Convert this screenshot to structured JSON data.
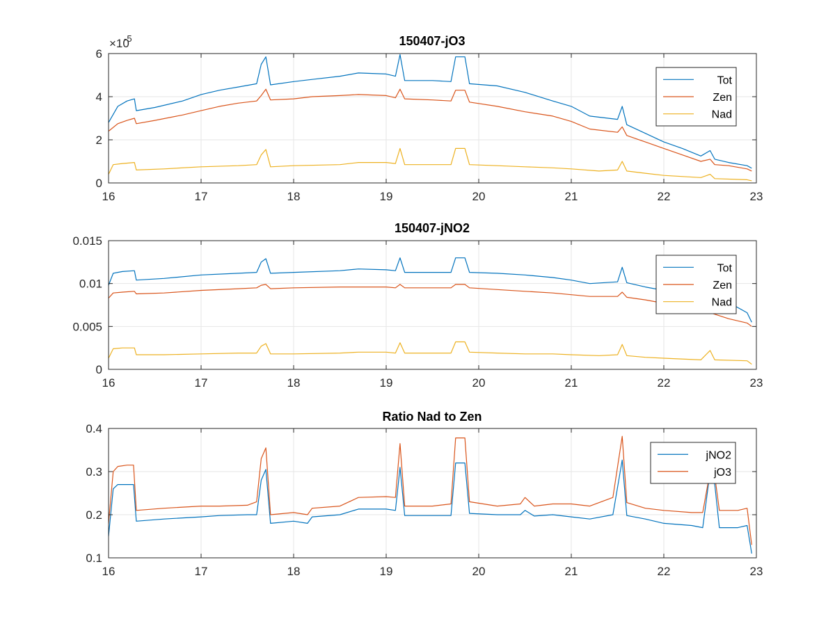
{
  "figure": {
    "background": "#ffffff"
  },
  "colors": {
    "blue": "#0072BD",
    "orange": "#D95319",
    "yellow": "#EDB120",
    "grid": "#e6e6e6",
    "axis": "#262626"
  },
  "chart_data": [
    {
      "type": "line",
      "title": "150407-jO3",
      "xlim": [
        16,
        23
      ],
      "ylim": [
        0,
        6e-05
      ],
      "xticks": [
        16,
        17,
        18,
        19,
        20,
        21,
        22,
        23
      ],
      "xtick_labels": [
        "16",
        "17",
        "18",
        "19",
        "20",
        "21",
        "22",
        "23"
      ],
      "yticks": [
        0,
        2e-05,
        4e-05,
        6e-05
      ],
      "ytick_labels": [
        "0",
        "2",
        "4",
        "6"
      ],
      "y_exponent_label": "×10",
      "y_exponent_power": "-5",
      "grid": true,
      "legend_position": "top-right",
      "series": [
        {
          "name": "Tot",
          "color": "#0072BD",
          "x": [
            16.0,
            16.1,
            16.2,
            16.28,
            16.3,
            16.5,
            16.8,
            17.0,
            17.2,
            17.4,
            17.6,
            17.65,
            17.7,
            17.75,
            18.0,
            18.2,
            18.5,
            18.7,
            19.0,
            19.1,
            19.15,
            19.2,
            19.5,
            19.7,
            19.75,
            19.85,
            19.9,
            20.2,
            20.5,
            20.8,
            21.0,
            21.2,
            21.5,
            21.55,
            21.6,
            21.8,
            22.0,
            22.2,
            22.4,
            22.5,
            22.55,
            22.7,
            22.9,
            22.95
          ],
          "y": [
            2.8e-05,
            3.55e-05,
            3.8e-05,
            3.9e-05,
            3.35e-05,
            3.5e-05,
            3.8e-05,
            4.1e-05,
            4.3e-05,
            4.45e-05,
            4.6e-05,
            5.5e-05,
            5.85e-05,
            4.55e-05,
            4.7e-05,
            4.8e-05,
            4.95e-05,
            5.1e-05,
            5.05e-05,
            4.95e-05,
            5.95e-05,
            4.75e-05,
            4.75e-05,
            4.7e-05,
            5.85e-05,
            5.85e-05,
            4.6e-05,
            4.5e-05,
            4.2e-05,
            3.8e-05,
            3.55e-05,
            3.1e-05,
            2.95e-05,
            3.55e-05,
            2.7e-05,
            2.3e-05,
            1.9e-05,
            1.6e-05,
            1.25e-05,
            1.5e-05,
            1.1e-05,
            9.5e-06,
            8e-06,
            6.8e-06
          ]
        },
        {
          "name": "Zen",
          "color": "#D95319",
          "x": [
            16.0,
            16.1,
            16.2,
            16.28,
            16.3,
            16.5,
            16.8,
            17.0,
            17.2,
            17.4,
            17.6,
            17.65,
            17.7,
            17.75,
            18.0,
            18.2,
            18.5,
            18.7,
            19.0,
            19.1,
            19.15,
            19.2,
            19.5,
            19.7,
            19.75,
            19.85,
            19.9,
            20.2,
            20.5,
            20.8,
            21.0,
            21.2,
            21.5,
            21.55,
            21.6,
            21.8,
            22.0,
            22.2,
            22.4,
            22.5,
            22.55,
            22.7,
            22.9,
            22.95
          ],
          "y": [
            2.4e-05,
            2.75e-05,
            2.9e-05,
            3e-05,
            2.75e-05,
            2.9e-05,
            3.15e-05,
            3.35e-05,
            3.55e-05,
            3.7e-05,
            3.8e-05,
            4.05e-05,
            4.35e-05,
            3.85e-05,
            3.9e-05,
            4e-05,
            4.05e-05,
            4.1e-05,
            4.05e-05,
            3.95e-05,
            4.35e-05,
            3.9e-05,
            3.85e-05,
            3.8e-05,
            4.3e-05,
            4.3e-05,
            3.75e-05,
            3.55e-05,
            3.3e-05,
            3.1e-05,
            2.85e-05,
            2.5e-05,
            2.35e-05,
            2.6e-05,
            2.2e-05,
            1.9e-05,
            1.6e-05,
            1.3e-05,
            1e-05,
            1.1e-05,
            8.5e-06,
            8e-06,
            6.5e-06,
            5.5e-06
          ]
        },
        {
          "name": "Nad",
          "color": "#EDB120",
          "x": [
            16.0,
            16.05,
            16.15,
            16.28,
            16.3,
            16.6,
            17.0,
            17.4,
            17.6,
            17.65,
            17.7,
            17.75,
            18.0,
            18.5,
            18.7,
            19.0,
            19.1,
            19.15,
            19.2,
            19.5,
            19.7,
            19.75,
            19.85,
            19.9,
            20.2,
            20.5,
            20.8,
            21.0,
            21.3,
            21.5,
            21.55,
            21.6,
            21.8,
            22.0,
            22.4,
            22.5,
            22.55,
            22.9,
            22.95
          ],
          "y": [
            4e-06,
            8.5e-06,
            9e-06,
            9.5e-06,
            6e-06,
            6.5e-06,
            7.5e-06,
            8e-06,
            8.5e-06,
            1.3e-05,
            1.55e-05,
            7.5e-06,
            8e-06,
            8.5e-06,
            9.5e-06,
            9.5e-06,
            9e-06,
            1.6e-05,
            8.5e-06,
            8.5e-06,
            8.5e-06,
            1.6e-05,
            1.6e-05,
            8.5e-06,
            8e-06,
            7.5e-06,
            7e-06,
            6.5e-06,
            5.5e-06,
            6e-06,
            1e-05,
            5.5e-06,
            4.5e-06,
            3.5e-06,
            2.5e-06,
            4e-06,
            2e-06,
            1.5e-06,
            1e-06
          ]
        }
      ]
    },
    {
      "type": "line",
      "title": "150407-jNO2",
      "xlim": [
        16,
        23
      ],
      "ylim": [
        0,
        0.015
      ],
      "xticks": [
        16,
        17,
        18,
        19,
        20,
        21,
        22,
        23
      ],
      "xtick_labels": [
        "16",
        "17",
        "18",
        "19",
        "20",
        "21",
        "22",
        "23"
      ],
      "yticks": [
        0,
        0.005,
        0.01,
        0.015
      ],
      "ytick_labels": [
        "0",
        "0.005",
        "0.01",
        "0.015"
      ],
      "grid": true,
      "legend_position": "top-right",
      "series": [
        {
          "name": "Tot",
          "color": "#0072BD",
          "x": [
            16.0,
            16.05,
            16.15,
            16.28,
            16.3,
            16.6,
            17.0,
            17.4,
            17.6,
            17.65,
            17.7,
            17.75,
            18.0,
            18.5,
            18.7,
            19.0,
            19.1,
            19.15,
            19.2,
            19.5,
            19.7,
            19.75,
            19.85,
            19.9,
            20.2,
            20.5,
            20.8,
            21.0,
            21.2,
            21.5,
            21.55,
            21.6,
            21.8,
            22.0,
            22.3,
            22.5,
            22.7,
            22.9,
            22.95
          ],
          "y": [
            0.0098,
            0.0112,
            0.0114,
            0.0115,
            0.0104,
            0.0106,
            0.011,
            0.0112,
            0.0113,
            0.0125,
            0.0129,
            0.0112,
            0.0113,
            0.0115,
            0.0117,
            0.0116,
            0.0115,
            0.013,
            0.0113,
            0.0113,
            0.0113,
            0.013,
            0.013,
            0.0113,
            0.0112,
            0.011,
            0.0107,
            0.0104,
            0.01,
            0.0102,
            0.0119,
            0.0101,
            0.0096,
            0.0092,
            0.0088,
            0.0084,
            0.0078,
            0.0066,
            0.0055
          ]
        },
        {
          "name": "Zen",
          "color": "#D95319",
          "x": [
            16.0,
            16.05,
            16.15,
            16.28,
            16.3,
            16.6,
            17.0,
            17.4,
            17.6,
            17.65,
            17.7,
            17.75,
            18.0,
            18.5,
            18.7,
            19.0,
            19.1,
            19.15,
            19.2,
            19.5,
            19.7,
            19.75,
            19.85,
            19.9,
            20.2,
            20.5,
            20.8,
            21.0,
            21.2,
            21.5,
            21.55,
            21.6,
            21.8,
            22.0,
            22.3,
            22.5,
            22.7,
            22.9,
            22.95
          ],
          "y": [
            0.0083,
            0.0089,
            0.009,
            0.0091,
            0.0088,
            0.0089,
            0.0092,
            0.0094,
            0.0095,
            0.0098,
            0.0099,
            0.0094,
            0.0095,
            0.0096,
            0.0096,
            0.0096,
            0.0095,
            0.0099,
            0.0095,
            0.0095,
            0.0095,
            0.0099,
            0.0099,
            0.0095,
            0.0093,
            0.0091,
            0.0089,
            0.0087,
            0.0085,
            0.0085,
            0.009,
            0.0084,
            0.0081,
            0.0077,
            0.0072,
            0.0066,
            0.0059,
            0.0054,
            0.005
          ]
        },
        {
          "name": "Nad",
          "color": "#EDB120",
          "x": [
            16.0,
            16.05,
            16.15,
            16.28,
            16.3,
            16.6,
            17.0,
            17.4,
            17.6,
            17.65,
            17.7,
            17.75,
            18.0,
            18.5,
            18.7,
            19.0,
            19.1,
            19.15,
            19.2,
            19.5,
            19.7,
            19.75,
            19.85,
            19.9,
            20.2,
            20.5,
            20.8,
            21.0,
            21.3,
            21.5,
            21.55,
            21.6,
            21.8,
            22.0,
            22.4,
            22.5,
            22.55,
            22.9,
            22.95
          ],
          "y": [
            0.0013,
            0.0024,
            0.0025,
            0.0025,
            0.0017,
            0.0017,
            0.0018,
            0.0019,
            0.0019,
            0.0027,
            0.003,
            0.0018,
            0.0018,
            0.0019,
            0.002,
            0.002,
            0.0019,
            0.0031,
            0.0019,
            0.0019,
            0.0019,
            0.0032,
            0.0032,
            0.002,
            0.0019,
            0.0018,
            0.0018,
            0.0017,
            0.0016,
            0.0017,
            0.0029,
            0.0016,
            0.0014,
            0.0013,
            0.0011,
            0.0022,
            0.0011,
            0.001,
            0.0006
          ]
        }
      ]
    },
    {
      "type": "line",
      "title": "Ratio Nad to Zen",
      "xlim": [
        16,
        23
      ],
      "ylim": [
        0.1,
        0.4
      ],
      "xticks": [
        16,
        17,
        18,
        19,
        20,
        21,
        22,
        23
      ],
      "xtick_labels": [
        "16",
        "17",
        "18",
        "19",
        "20",
        "21",
        "22",
        "23"
      ],
      "yticks": [
        0.1,
        0.2,
        0.3,
        0.4
      ],
      "ytick_labels": [
        "0.1",
        "0.2",
        "0.3",
        "0.4"
      ],
      "grid": true,
      "legend_position": "top-right",
      "series": [
        {
          "name": "jNO2",
          "color": "#0072BD",
          "x": [
            16.0,
            16.05,
            16.1,
            16.2,
            16.27,
            16.3,
            16.6,
            17.0,
            17.2,
            17.5,
            17.6,
            17.65,
            17.7,
            17.75,
            18.0,
            18.15,
            18.2,
            18.5,
            18.7,
            19.0,
            19.1,
            19.15,
            19.2,
            19.5,
            19.7,
            19.75,
            19.85,
            19.9,
            20.2,
            20.45,
            20.5,
            20.6,
            20.8,
            21.0,
            21.2,
            21.45,
            21.55,
            21.6,
            21.8,
            22.0,
            22.3,
            22.42,
            22.5,
            22.55,
            22.6,
            22.8,
            22.9,
            22.95
          ],
          "y": [
            0.15,
            0.26,
            0.27,
            0.27,
            0.27,
            0.185,
            0.19,
            0.195,
            0.198,
            0.2,
            0.2,
            0.28,
            0.305,
            0.18,
            0.185,
            0.18,
            0.195,
            0.2,
            0.213,
            0.213,
            0.21,
            0.31,
            0.198,
            0.198,
            0.198,
            0.32,
            0.32,
            0.203,
            0.2,
            0.2,
            0.21,
            0.197,
            0.2,
            0.195,
            0.19,
            0.2,
            0.327,
            0.198,
            0.19,
            0.18,
            0.175,
            0.17,
            0.3,
            0.27,
            0.17,
            0.17,
            0.175,
            0.11
          ]
        },
        {
          "name": "jO3",
          "color": "#D95319",
          "x": [
            16.0,
            16.05,
            16.1,
            16.2,
            16.27,
            16.3,
            16.6,
            17.0,
            17.2,
            17.5,
            17.6,
            17.65,
            17.7,
            17.75,
            18.0,
            18.15,
            18.2,
            18.5,
            18.7,
            19.0,
            19.1,
            19.15,
            19.2,
            19.5,
            19.7,
            19.75,
            19.85,
            19.9,
            20.2,
            20.45,
            20.5,
            20.6,
            20.8,
            21.0,
            21.2,
            21.45,
            21.55,
            21.6,
            21.8,
            22.0,
            22.3,
            22.42,
            22.5,
            22.55,
            22.6,
            22.8,
            22.9,
            22.95
          ],
          "y": [
            0.18,
            0.3,
            0.312,
            0.315,
            0.315,
            0.21,
            0.215,
            0.22,
            0.22,
            0.222,
            0.23,
            0.33,
            0.355,
            0.2,
            0.205,
            0.2,
            0.215,
            0.22,
            0.24,
            0.242,
            0.24,
            0.365,
            0.22,
            0.22,
            0.225,
            0.378,
            0.378,
            0.23,
            0.22,
            0.225,
            0.24,
            0.22,
            0.225,
            0.225,
            0.22,
            0.24,
            0.382,
            0.228,
            0.215,
            0.21,
            0.205,
            0.205,
            0.3,
            0.29,
            0.21,
            0.21,
            0.215,
            0.13
          ]
        }
      ]
    }
  ]
}
